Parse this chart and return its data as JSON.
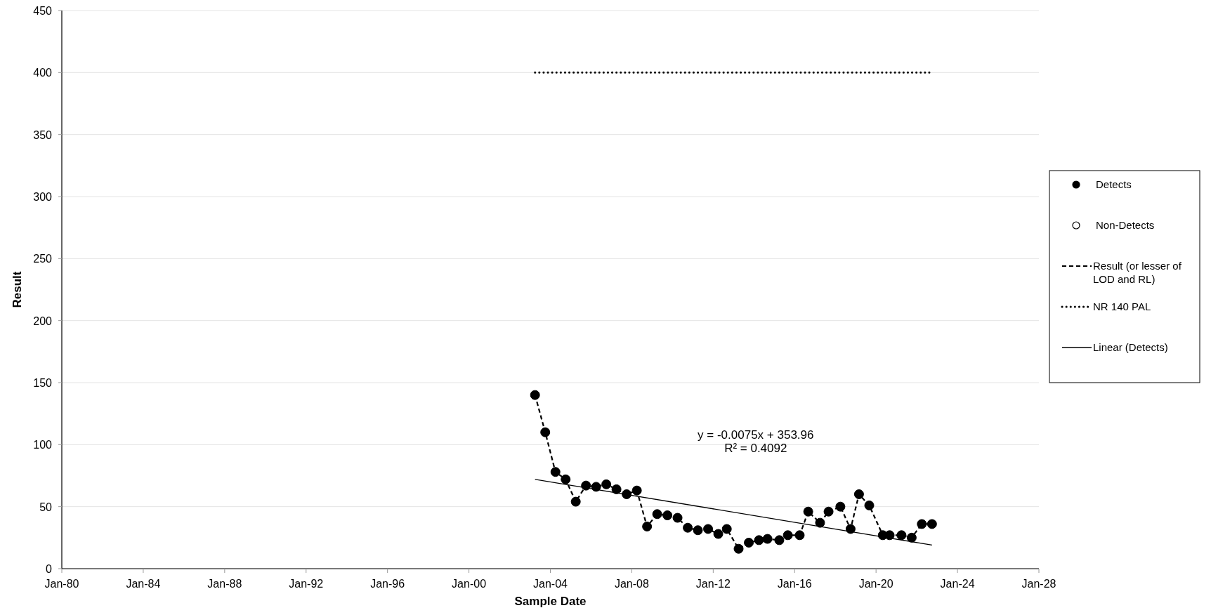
{
  "chart_data": {
    "type": "scatter",
    "xlabel": "Sample Date",
    "ylabel": "Result",
    "x": [
      "2003-04",
      "2003-10",
      "2004-04",
      "2004-10",
      "2005-04",
      "2005-10",
      "2006-04",
      "2006-10",
      "2007-04",
      "2007-10",
      "2008-04",
      "2008-10",
      "2009-04",
      "2009-10",
      "2010-04",
      "2010-10",
      "2011-04",
      "2011-10",
      "2012-04",
      "2012-09",
      "2013-04",
      "2013-10",
      "2014-04",
      "2014-09",
      "2015-04",
      "2015-09",
      "2016-04",
      "2016-09",
      "2017-04",
      "2017-09",
      "2018-04",
      "2018-10",
      "2019-03",
      "2019-09",
      "2020-05",
      "2020-09",
      "2021-04",
      "2021-10",
      "2022-04",
      "2022-10"
    ],
    "series": [
      {
        "name": "Detects",
        "marker": "circle",
        "color": "#000000",
        "values": [
          140,
          110,
          78,
          72,
          54,
          67,
          66,
          68,
          64,
          60,
          63,
          34,
          44,
          43,
          41,
          33,
          31,
          32,
          28,
          32,
          16,
          21,
          23,
          24,
          23,
          27,
          27,
          46,
          37,
          46,
          50,
          32,
          60,
          51,
          27,
          27,
          27,
          25,
          36,
          36
        ]
      },
      {
        "name": "Non-Detects",
        "type": "scatter",
        "marker": "circle",
        "color": "#ffffff",
        "values": [
          null,
          null,
          null,
          null,
          null,
          null,
          null,
          null,
          null,
          null,
          null,
          null,
          null,
          null,
          null,
          null,
          null,
          null,
          null,
          null,
          null,
          null,
          null,
          null,
          null,
          null,
          null,
          null,
          null,
          null,
          null,
          null,
          null,
          null,
          null,
          null,
          null,
          null,
          null,
          null
        ]
      },
      {
        "name": "Result (or lesser of LOD and RL)",
        "type": "line",
        "marker": "none",
        "line_style": "dashed",
        "color": "#000000",
        "values": [
          140,
          110,
          78,
          72,
          54,
          67,
          66,
          68,
          64,
          60,
          63,
          34,
          44,
          43,
          41,
          33,
          31,
          32,
          28,
          32,
          16,
          21,
          23,
          24,
          23,
          27,
          27,
          46,
          37,
          46,
          50,
          32,
          60,
          51,
          27,
          27,
          27,
          25,
          36,
          36
        ]
      },
      {
        "name": "NR 140 PAL",
        "type": "line",
        "marker": "none",
        "line_style": "dotted",
        "color": "#000000",
        "x": [
          "2003-04",
          "2022-10"
        ],
        "values": [
          400,
          400
        ]
      },
      {
        "name": "Linear (Detects)",
        "type": "line",
        "marker": "none",
        "line_style": "solid",
        "color": "#000000",
        "x": [
          "2003-04",
          "2022-10"
        ],
        "values": [
          72,
          19
        ]
      }
    ],
    "annotations": [
      "y = -0.0075x + 353.96",
      "R² = 0.4092"
    ],
    "xlim": [
      "1980-01",
      "2028-01"
    ],
    "xticks": [
      {
        "value": "1980-01",
        "label": "Jan-80"
      },
      {
        "value": "1984-01",
        "label": "Jan-84"
      },
      {
        "value": "1988-01",
        "label": "Jan-88"
      },
      {
        "value": "1992-01",
        "label": "Jan-92"
      },
      {
        "value": "1996-01",
        "label": "Jan-96"
      },
      {
        "value": "2000-01",
        "label": "Jan-00"
      },
      {
        "value": "2004-01",
        "label": "Jan-04"
      },
      {
        "value": "2008-01",
        "label": "Jan-08"
      },
      {
        "value": "2012-01",
        "label": "Jan-12"
      },
      {
        "value": "2016-01",
        "label": "Jan-16"
      },
      {
        "value": "2020-01",
        "label": "Jan-20"
      },
      {
        "value": "2024-01",
        "label": "Jan-24"
      },
      {
        "value": "2028-01",
        "label": "Jan-28"
      }
    ],
    "ylim": [
      0,
      450
    ],
    "yticks": [
      0,
      50,
      100,
      150,
      200,
      250,
      300,
      350,
      400,
      450
    ],
    "grid": "y",
    "legend": "right"
  }
}
